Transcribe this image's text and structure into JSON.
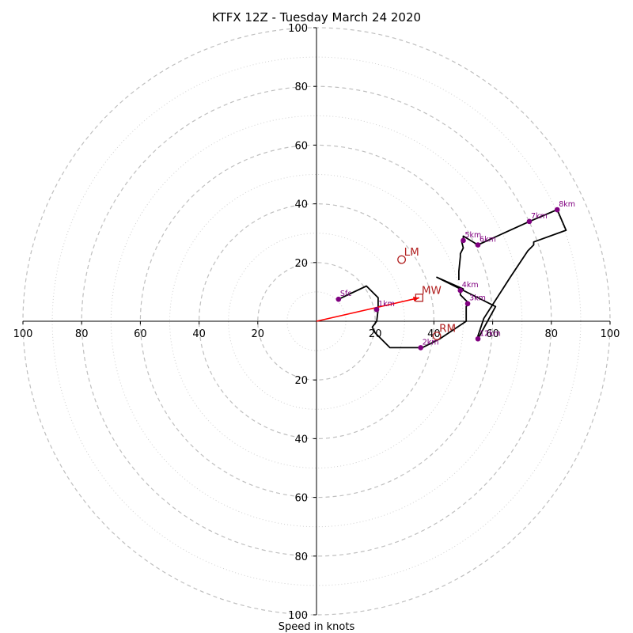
{
  "chart_data": {
    "type": "scatter",
    "title": "KTFX 12Z - Tuesday March 24 2020",
    "xlabel": "Speed in knots",
    "ylabel": "",
    "xlim": [
      -100,
      100
    ],
    "ylim": [
      -100,
      100
    ],
    "ring_labels": [
      "20",
      "40",
      "60",
      "80",
      "100"
    ],
    "grid": true,
    "hodograph": [
      [
        7.5,
        7.5
      ],
      [
        17,
        12
      ],
      [
        21,
        8
      ],
      [
        21,
        4
      ],
      [
        20.5,
        0
      ],
      [
        19,
        -2
      ],
      [
        20,
        -4
      ],
      [
        25,
        -9
      ],
      [
        36,
        -9
      ],
      [
        42,
        -6
      ],
      [
        51,
        0
      ],
      [
        51,
        5
      ],
      [
        52,
        6
      ],
      [
        49,
        9
      ],
      [
        49,
        10
      ],
      [
        50,
        11
      ],
      [
        41,
        15
      ],
      [
        57,
        7
      ],
      [
        61,
        5
      ],
      [
        55,
        -6
      ],
      [
        55,
        -5
      ],
      [
        57,
        1
      ],
      [
        66,
        15
      ],
      [
        72,
        24
      ],
      [
        74,
        26
      ],
      [
        74,
        27
      ],
      [
        85,
        31
      ],
      [
        82,
        38
      ],
      [
        72.5,
        34
      ],
      [
        55,
        26
      ],
      [
        50,
        29
      ],
      [
        50,
        28
      ],
      [
        49.5,
        27
      ],
      [
        50,
        25
      ],
      [
        49,
        23
      ],
      [
        49,
        22
      ],
      [
        48.5,
        17
      ],
      [
        48.5,
        14
      ]
    ],
    "height_markers": [
      {
        "label": "Sfc",
        "x": 7.5,
        "y": 7.5
      },
      {
        "label": "1km",
        "x": 20.5,
        "y": 4
      },
      {
        "label": "2km",
        "x": 35.5,
        "y": -9
      },
      {
        "label": "3km",
        "x": 51.5,
        "y": 6
      },
      {
        "label": "4km",
        "x": 49,
        "y": 10.5
      },
      {
        "label": "5km",
        "x": 50,
        "y": 27.5
      },
      {
        "label": "6km",
        "x": 55,
        "y": 26
      },
      {
        "label": "7km",
        "x": 72.5,
        "y": 34
      },
      {
        "label": "8km",
        "x": 82,
        "y": 38
      },
      {
        "label": "12km",
        "x": 55,
        "y": -6
      }
    ],
    "storm_motion": [
      {
        "label": "MW",
        "x": 35,
        "y": 8,
        "marker": "square"
      },
      {
        "label": "LM",
        "x": 29,
        "y": 21,
        "marker": "circle"
      },
      {
        "label": "RM",
        "x": 41,
        "y": -5,
        "marker": "circle"
      }
    ],
    "shear_vector": {
      "from": [
        0,
        0
      ],
      "to": [
        35,
        8
      ]
    }
  },
  "colors": {
    "hodograph": "#000000",
    "markers": "#800080",
    "storm_motion": "#b22222",
    "shear_vector": "#ff0000",
    "grid": "#bfbfbf"
  }
}
